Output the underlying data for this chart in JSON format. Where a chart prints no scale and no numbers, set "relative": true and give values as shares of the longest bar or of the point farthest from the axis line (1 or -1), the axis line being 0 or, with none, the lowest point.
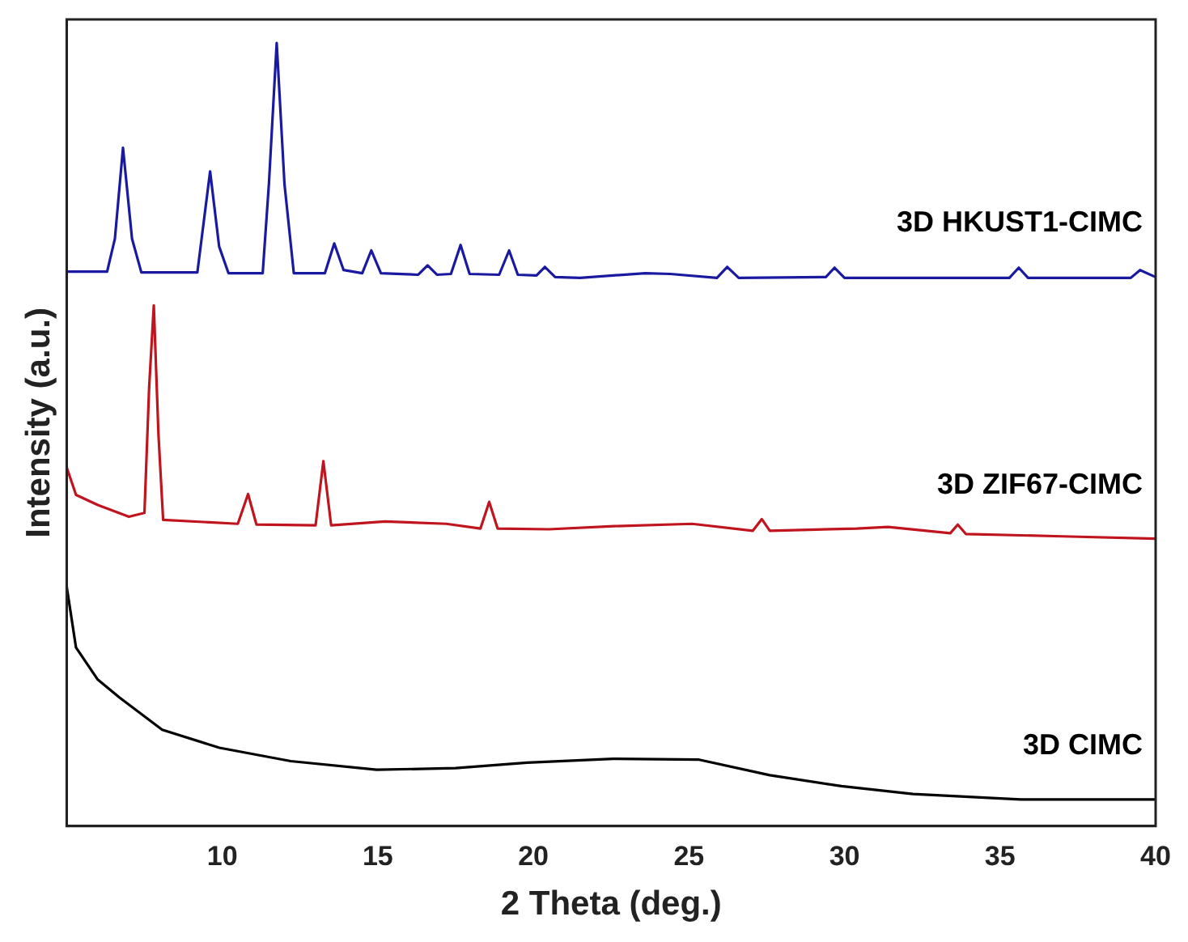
{
  "chart_data": {
    "type": "line",
    "relative": true,
    "xlabel": "2 Theta (deg.)",
    "ylabel": "Intensity (a.u.)",
    "xlim": [
      5,
      40
    ],
    "xticks": [
      10,
      15,
      20,
      25,
      30,
      35,
      40
    ],
    "grid": false,
    "legend": false,
    "marker": "none",
    "line_style": "solid",
    "series": [
      {
        "name": "3D HKUST1-CIMC",
        "color": "#1a1aa0",
        "x": [
          5,
          6.3,
          6.55,
          6.81,
          7.1,
          7.4,
          9.2,
          9.61,
          9.9,
          10.2,
          11.3,
          11.5,
          11.75,
          12.0,
          12.3,
          13.3,
          13.6,
          13.9,
          14.5,
          14.79,
          15.1,
          16.3,
          16.6,
          16.9,
          17.35,
          17.66,
          17.95,
          18.9,
          19.22,
          19.5,
          20.1,
          20.37,
          20.7,
          21.5,
          23.6,
          24.4,
          25.9,
          26.23,
          26.6,
          29.4,
          29.68,
          30.0,
          35.3,
          35.6,
          35.9,
          39.2,
          39.5,
          40
        ],
        "values": [
          0.708,
          0.708,
          0.75,
          0.866,
          0.75,
          0.707,
          0.707,
          0.836,
          0.74,
          0.706,
          0.706,
          0.82,
          1.0,
          0.82,
          0.706,
          0.706,
          0.744,
          0.71,
          0.706,
          0.735,
          0.706,
          0.704,
          0.716,
          0.704,
          0.705,
          0.742,
          0.705,
          0.704,
          0.735,
          0.704,
          0.703,
          0.714,
          0.701,
          0.7,
          0.706,
          0.705,
          0.7,
          0.714,
          0.7,
          0.701,
          0.713,
          0.7,
          0.7,
          0.713,
          0.7,
          0.7,
          0.71,
          0.701
        ]
      },
      {
        "name": "3D ZIF67-CIMC",
        "color": "#c0141e",
        "x": [
          5,
          5.3,
          6.0,
          7.0,
          7.5,
          7.65,
          7.8,
          7.95,
          8.1,
          10.5,
          10.83,
          11.1,
          13.0,
          13.25,
          13.5,
          15.23,
          17.2,
          18.3,
          18.58,
          18.85,
          20.5,
          22.6,
          25.1,
          27.05,
          27.34,
          27.6,
          30.4,
          31.4,
          33.4,
          33.64,
          33.9,
          37,
          40
        ],
        "values": [
          0.458,
          0.423,
          0.41,
          0.395,
          0.4,
          0.56,
          0.665,
          0.5,
          0.391,
          0.386,
          0.424,
          0.385,
          0.384,
          0.466,
          0.384,
          0.389,
          0.386,
          0.38,
          0.414,
          0.38,
          0.379,
          0.383,
          0.386,
          0.377,
          0.392,
          0.377,
          0.38,
          0.382,
          0.374,
          0.385,
          0.373,
          0.37,
          0.367
        ]
      },
      {
        "name": "3D CIMC",
        "color": "#000000",
        "x": [
          5,
          5.3,
          6.0,
          6.7,
          8.07,
          9.91,
          12.2,
          14.96,
          17.5,
          19.8,
          22.56,
          25.3,
          27.6,
          29.9,
          32.2,
          35.66,
          40
        ],
        "values": [
          0.306,
          0.228,
          0.187,
          0.164,
          0.123,
          0.1,
          0.083,
          0.072,
          0.074,
          0.081,
          0.086,
          0.085,
          0.065,
          0.051,
          0.041,
          0.034,
          0.034
        ]
      }
    ]
  }
}
